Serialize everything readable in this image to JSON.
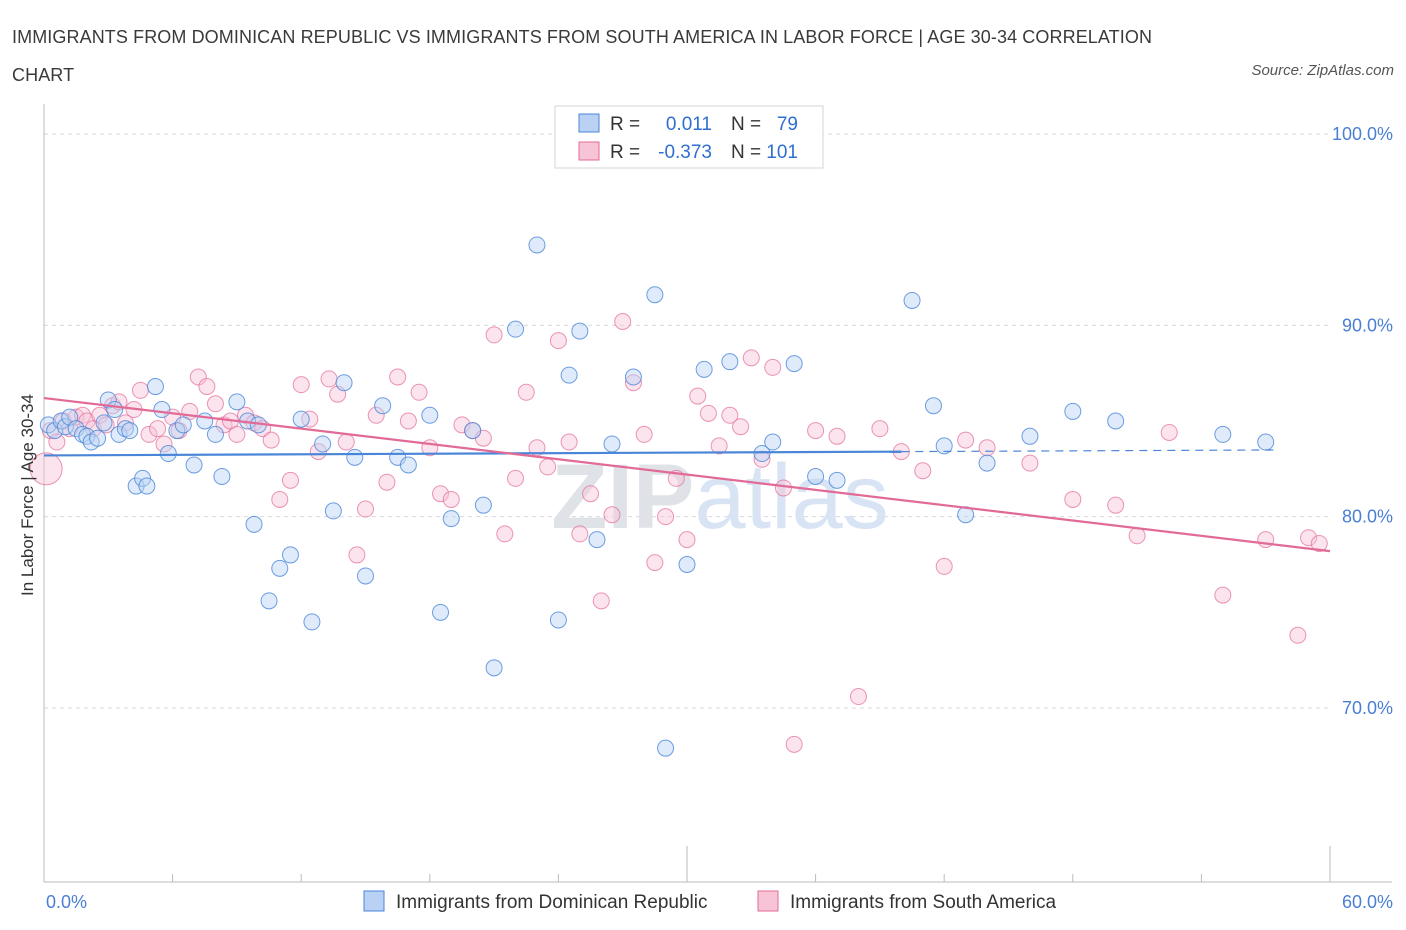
{
  "title": "IMMIGRANTS FROM DOMINICAN REPUBLIC VS IMMIGRANTS FROM SOUTH AMERICA IN LABOR FORCE | AGE 30-34 CORRELATION CHART",
  "source": "Source: ZipAtlas.com",
  "watermark": "ZIPatlas",
  "colors": {
    "blue": "#4a86d8",
    "blue_fill": "#b9d2f3",
    "pink": "#e26a97",
    "pink_fill": "#f6c4d6",
    "tick": "#4a7fd4"
  },
  "legend": {
    "rows": [
      {
        "r_label": "R =",
        "r_value": "0.011",
        "n_label": "N =",
        "n_value": "79"
      },
      {
        "r_label": "R =",
        "r_value": "-0.373",
        "n_label": "N =",
        "n_value": "101"
      }
    ]
  },
  "bottom_legend": [
    "Immigrants from Dominican Republic",
    "Immigrants from South America"
  ],
  "chart_data": {
    "type": "scatter",
    "title": "IMMIGRANTS FROM DOMINICAN REPUBLIC VS IMMIGRANTS FROM SOUTH AMERICA IN LABOR FORCE | AGE 30-34 CORRELATION CHART",
    "xlabel": "",
    "ylabel": "In Labor Force | Age 30-34",
    "xlim": [
      0,
      60
    ],
    "ylim": [
      60,
      100
    ],
    "x_tick_labels": [
      "0.0%",
      "60.0%"
    ],
    "y_tick_labels": [
      "100.0%",
      "90.0%",
      "80.0%",
      "70.0%"
    ],
    "y_ticks": [
      100,
      90,
      80,
      70
    ],
    "grid": true,
    "legend_position": "top-center",
    "series": [
      {
        "name": "Immigrants from Dominican Republic",
        "R": 0.011,
        "N": 79,
        "trend": {
          "x0": 0,
          "y0": 83.2,
          "x1": 40,
          "y1": 83.4,
          "dash_to": 57.5
        },
        "points": [
          [
            0.2,
            84.8
          ],
          [
            0.5,
            84.5
          ],
          [
            0.8,
            85.0
          ],
          [
            1.0,
            84.7
          ],
          [
            1.2,
            85.2
          ],
          [
            1.5,
            84.6
          ],
          [
            1.8,
            84.3
          ],
          [
            2.0,
            84.2
          ],
          [
            2.2,
            83.9
          ],
          [
            2.5,
            84.1
          ],
          [
            2.8,
            84.9
          ],
          [
            3.0,
            86.1
          ],
          [
            3.3,
            85.6
          ],
          [
            3.5,
            84.3
          ],
          [
            3.8,
            84.6
          ],
          [
            4.0,
            84.5
          ],
          [
            4.3,
            81.6
          ],
          [
            4.6,
            82.0
          ],
          [
            4.8,
            81.6
          ],
          [
            5.2,
            86.8
          ],
          [
            5.5,
            85.6
          ],
          [
            5.8,
            83.3
          ],
          [
            6.2,
            84.5
          ],
          [
            6.5,
            84.8
          ],
          [
            7.0,
            82.7
          ],
          [
            7.5,
            85.0
          ],
          [
            8.0,
            84.3
          ],
          [
            8.3,
            82.1
          ],
          [
            9.0,
            86.0
          ],
          [
            9.5,
            85.0
          ],
          [
            9.8,
            79.6
          ],
          [
            10.0,
            84.8
          ],
          [
            10.5,
            75.6
          ],
          [
            11.0,
            77.3
          ],
          [
            11.5,
            78.0
          ],
          [
            12.0,
            85.1
          ],
          [
            12.5,
            74.5
          ],
          [
            13.0,
            83.8
          ],
          [
            13.5,
            80.3
          ],
          [
            14.0,
            87.0
          ],
          [
            14.5,
            83.1
          ],
          [
            15.0,
            76.9
          ],
          [
            15.8,
            85.8
          ],
          [
            16.5,
            83.1
          ],
          [
            17.0,
            82.7
          ],
          [
            18.0,
            85.3
          ],
          [
            18.5,
            75.0
          ],
          [
            19.0,
            79.9
          ],
          [
            20.0,
            84.5
          ],
          [
            20.5,
            80.6
          ],
          [
            21.0,
            72.1
          ],
          [
            22.0,
            89.8
          ],
          [
            23.0,
            94.2
          ],
          [
            24.0,
            74.6
          ],
          [
            24.5,
            87.4
          ],
          [
            25.0,
            89.7
          ],
          [
            25.8,
            78.8
          ],
          [
            26.5,
            83.8
          ],
          [
            27.5,
            87.3
          ],
          [
            28.5,
            91.6
          ],
          [
            29.0,
            67.9
          ],
          [
            30.0,
            77.5
          ],
          [
            30.8,
            87.7
          ],
          [
            32.0,
            88.1
          ],
          [
            33.5,
            83.3
          ],
          [
            34.0,
            83.9
          ],
          [
            35.0,
            88.0
          ],
          [
            36.0,
            82.1
          ],
          [
            37.0,
            81.9
          ],
          [
            40.5,
            91.3
          ],
          [
            41.5,
            85.8
          ],
          [
            42.0,
            83.7
          ],
          [
            43.0,
            80.1
          ],
          [
            44.0,
            82.8
          ],
          [
            46.0,
            84.2
          ],
          [
            48.0,
            85.5
          ],
          [
            50.0,
            85.0
          ],
          [
            55.0,
            84.3
          ],
          [
            57.0,
            83.9
          ]
        ]
      },
      {
        "name": "Immigrants from South America",
        "R": -0.373,
        "N": 101,
        "trend": {
          "x0": 0,
          "y0": 86.2,
          "x1": 60,
          "y1": 78.2
        },
        "points": [
          [
            0.1,
            82.5
          ],
          [
            0.3,
            84.5
          ],
          [
            0.6,
            83.9
          ],
          [
            0.9,
            85.0
          ],
          [
            1.2,
            84.6
          ],
          [
            1.5,
            85.2
          ],
          [
            1.8,
            85.3
          ],
          [
            2.0,
            85.0
          ],
          [
            2.3,
            84.6
          ],
          [
            2.6,
            85.3
          ],
          [
            2.9,
            84.8
          ],
          [
            3.2,
            85.8
          ],
          [
            3.5,
            86.0
          ],
          [
            3.8,
            84.9
          ],
          [
            4.2,
            85.6
          ],
          [
            4.5,
            86.6
          ],
          [
            4.9,
            84.3
          ],
          [
            5.3,
            84.6
          ],
          [
            5.6,
            83.8
          ],
          [
            6.0,
            85.2
          ],
          [
            6.3,
            84.5
          ],
          [
            6.8,
            85.5
          ],
          [
            7.2,
            87.3
          ],
          [
            7.6,
            86.8
          ],
          [
            8.0,
            85.9
          ],
          [
            8.4,
            84.8
          ],
          [
            8.7,
            85.0
          ],
          [
            9.0,
            84.3
          ],
          [
            9.4,
            85.3
          ],
          [
            9.8,
            84.9
          ],
          [
            10.2,
            84.6
          ],
          [
            10.6,
            84.0
          ],
          [
            11.0,
            80.9
          ],
          [
            11.5,
            81.9
          ],
          [
            12.0,
            86.9
          ],
          [
            12.4,
            85.1
          ],
          [
            12.8,
            83.4
          ],
          [
            13.3,
            87.2
          ],
          [
            13.7,
            86.4
          ],
          [
            14.1,
            83.9
          ],
          [
            14.6,
            78.0
          ],
          [
            15.0,
            80.4
          ],
          [
            15.5,
            85.3
          ],
          [
            16.0,
            81.8
          ],
          [
            16.5,
            87.3
          ],
          [
            17.0,
            85.0
          ],
          [
            17.5,
            86.5
          ],
          [
            18.0,
            83.6
          ],
          [
            18.5,
            81.2
          ],
          [
            19.0,
            80.9
          ],
          [
            19.5,
            84.8
          ],
          [
            20.0,
            84.5
          ],
          [
            20.5,
            84.1
          ],
          [
            21.0,
            89.5
          ],
          [
            21.5,
            79.1
          ],
          [
            22.0,
            82.0
          ],
          [
            22.5,
            86.5
          ],
          [
            23.0,
            83.6
          ],
          [
            23.5,
            82.6
          ],
          [
            24.0,
            89.2
          ],
          [
            24.5,
            83.9
          ],
          [
            25.0,
            79.1
          ],
          [
            25.5,
            81.2
          ],
          [
            26.0,
            75.6
          ],
          [
            26.5,
            80.1
          ],
          [
            27.0,
            90.2
          ],
          [
            27.5,
            87.0
          ],
          [
            28.0,
            84.3
          ],
          [
            28.5,
            77.6
          ],
          [
            29.0,
            80.0
          ],
          [
            29.5,
            82.0
          ],
          [
            30.0,
            78.8
          ],
          [
            30.5,
            86.3
          ],
          [
            31.0,
            85.4
          ],
          [
            31.5,
            83.7
          ],
          [
            32.0,
            85.3
          ],
          [
            32.5,
            84.7
          ],
          [
            33.0,
            88.3
          ],
          [
            33.5,
            83.0
          ],
          [
            34.0,
            87.8
          ],
          [
            34.5,
            81.5
          ],
          [
            35.0,
            68.1
          ],
          [
            36.0,
            84.5
          ],
          [
            37.0,
            84.2
          ],
          [
            38.0,
            70.6
          ],
          [
            39.0,
            84.6
          ],
          [
            40.0,
            83.4
          ],
          [
            41.0,
            82.4
          ],
          [
            42.0,
            77.4
          ],
          [
            43.0,
            84.0
          ],
          [
            44.0,
            83.6
          ],
          [
            46.0,
            82.8
          ],
          [
            48.0,
            80.9
          ],
          [
            50.0,
            80.6
          ],
          [
            51.0,
            79.0
          ],
          [
            52.5,
            84.4
          ],
          [
            55.0,
            75.9
          ],
          [
            57.0,
            78.8
          ],
          [
            58.5,
            73.8
          ],
          [
            59.0,
            78.9
          ],
          [
            59.5,
            78.6
          ]
        ]
      }
    ]
  }
}
